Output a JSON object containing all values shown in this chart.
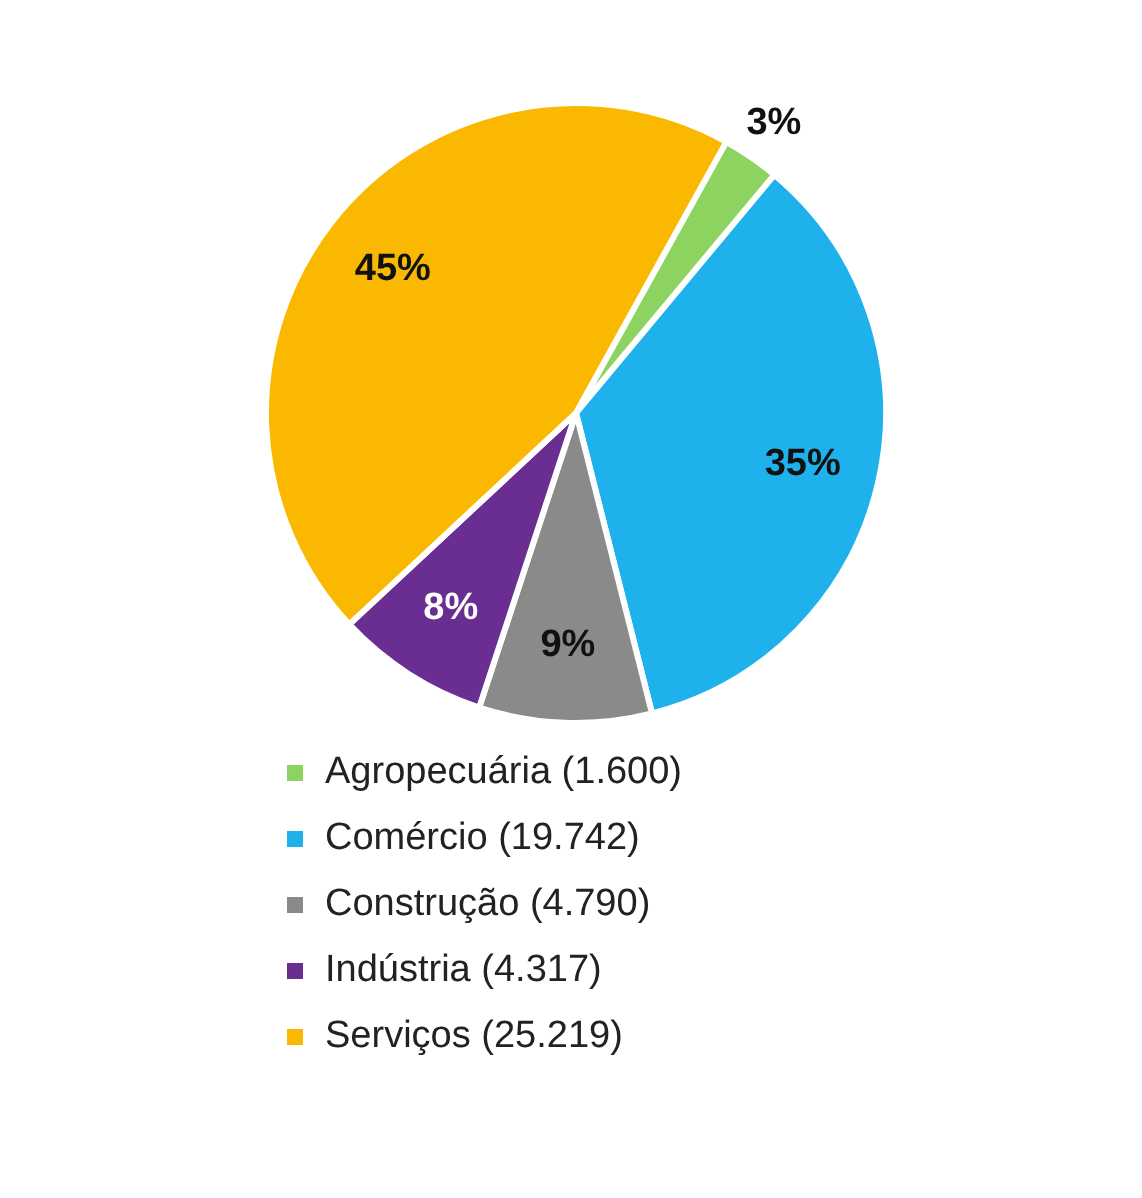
{
  "chart_data": {
    "type": "pie",
    "categories": [
      "Agropecuária (1.600)",
      "Comércio (19.742)",
      "Construção (4.790)",
      "Indústria (4.317)",
      "Serviços (25.219)"
    ],
    "values": [
      3,
      35,
      9,
      8,
      45
    ],
    "value_labels": [
      "3%",
      "35%",
      "9%",
      "8%",
      "45%"
    ],
    "colors": [
      "#8dd35f",
      "#1eb1ec",
      "#8a8a8a",
      "#6a2d91",
      "#fbb800"
    ],
    "legend": "bottom"
  }
}
